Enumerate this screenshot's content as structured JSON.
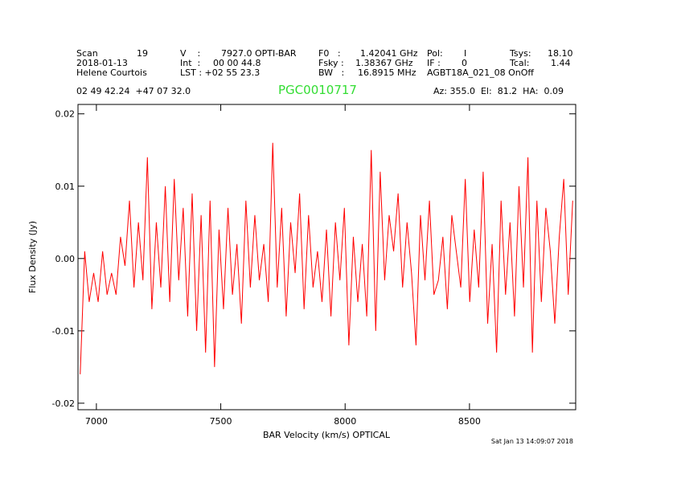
{
  "chart_data": {
    "type": "line",
    "title": "PGC0010717",
    "header": [
      "Scan",
      "19",
      "V    :",
      "7927.0 OPTI-BAR",
      "F0   :",
      "1.42041 GHz",
      "Pol:",
      "I",
      "Tsys:",
      "18.10",
      "2018-01-13",
      "Int  :",
      "00 00 44.8",
      "Fsky :",
      "1.38367 GHz",
      "IF :",
      "0",
      "Tcal:",
      "1.44",
      "Helene Courtois",
      "LST : +02 55 23.3",
      "BW   :",
      "16.8915 MHz",
      "AGBT18A_021_08 OnOff",
      "02 49 42.24  +47 07 32.0",
      "Az: 355.0  El:  81.2  HA:  0.09"
    ],
    "timestamp": "Sat Jan 13 14:09:07 2018",
    "xlabel": "BAR Velocity (km/s) OPTICAL",
    "ylabel": "Flux Density (Jy)",
    "xlim": [
      6926,
      8927
    ],
    "ylim": [
      -0.0209,
      0.0213
    ],
    "xticks": [
      7000,
      7500,
      8000,
      8500
    ],
    "yticks": [
      -0.02,
      -0.01,
      {
        "value": 0,
        "label": "0.00"
      },
      0.01,
      0.02
    ],
    "series": [
      {
        "name": "spectrum",
        "color": "#ff0000",
        "x": [
          6935,
          6953,
          6971,
          6989,
          7007,
          7025,
          7043,
          7061,
          7079,
          7097,
          7115,
          7133,
          7151,
          7169,
          7187,
          7205,
          7223,
          7241,
          7259,
          7277,
          7295,
          7313,
          7331,
          7349,
          7367,
          7385,
          7403,
          7421,
          7439,
          7457,
          7475,
          7493,
          7511,
          7529,
          7547,
          7565,
          7583,
          7601,
          7619,
          7637,
          7655,
          7673,
          7691,
          7709,
          7727,
          7745,
          7763,
          7781,
          7799,
          7817,
          7835,
          7853,
          7871,
          7889,
          7907,
          7925,
          7943,
          7961,
          7979,
          7997,
          8015,
          8033,
          8051,
          8069,
          8087,
          8105,
          8123,
          8141,
          8159,
          8177,
          8195,
          8213,
          8231,
          8249,
          8267,
          8285,
          8303,
          8321,
          8339,
          8357,
          8375,
          8393,
          8411,
          8429,
          8447,
          8465,
          8483,
          8501,
          8519,
          8537,
          8555,
          8573,
          8591,
          8609,
          8627,
          8645,
          8663,
          8681,
          8699,
          8717,
          8735,
          8753,
          8771,
          8789,
          8807,
          8825,
          8843,
          8861,
          8879,
          8897,
          8915
        ],
        "values": [
          -0.016,
          0.001,
          -0.006,
          -0.002,
          -0.006,
          0.001,
          -0.005,
          -0.002,
          -0.005,
          0.003,
          -0.001,
          0.008,
          -0.004,
          0.005,
          -0.003,
          0.014,
          -0.007,
          0.005,
          -0.004,
          0.01,
          -0.006,
          0.011,
          -0.003,
          0.007,
          -0.008,
          0.009,
          -0.01,
          0.006,
          -0.013,
          0.008,
          -0.015,
          0.004,
          -0.007,
          0.007,
          -0.005,
          0.002,
          -0.009,
          0.008,
          -0.004,
          0.006,
          -0.003,
          0.002,
          -0.006,
          0.016,
          -0.004,
          0.007,
          -0.008,
          0.005,
          -0.002,
          0.009,
          -0.007,
          0.006,
          -0.004,
          0.001,
          -0.006,
          0.004,
          -0.008,
          0.005,
          -0.003,
          0.007,
          -0.012,
          0.003,
          -0.006,
          0.002,
          -0.008,
          0.015,
          -0.01,
          0.012,
          -0.003,
          0.006,
          0.001,
          0.009,
          -0.004,
          0.005,
          -0.002,
          -0.012,
          0.006,
          -0.003,
          0.008,
          -0.005,
          -0.003,
          0.003,
          -0.007,
          0.006,
          0.001,
          -0.004,
          0.011,
          -0.006,
          0.004,
          -0.004,
          0.012,
          -0.009,
          0.002,
          -0.013,
          0.008,
          -0.005,
          0.005,
          -0.008,
          0.01,
          -0.004,
          0.014,
          -0.013,
          0.008,
          -0.006,
          0.007,
          0.001,
          -0.009,
          0.003,
          0.011,
          -0.005,
          0.008
        ]
      }
    ]
  }
}
